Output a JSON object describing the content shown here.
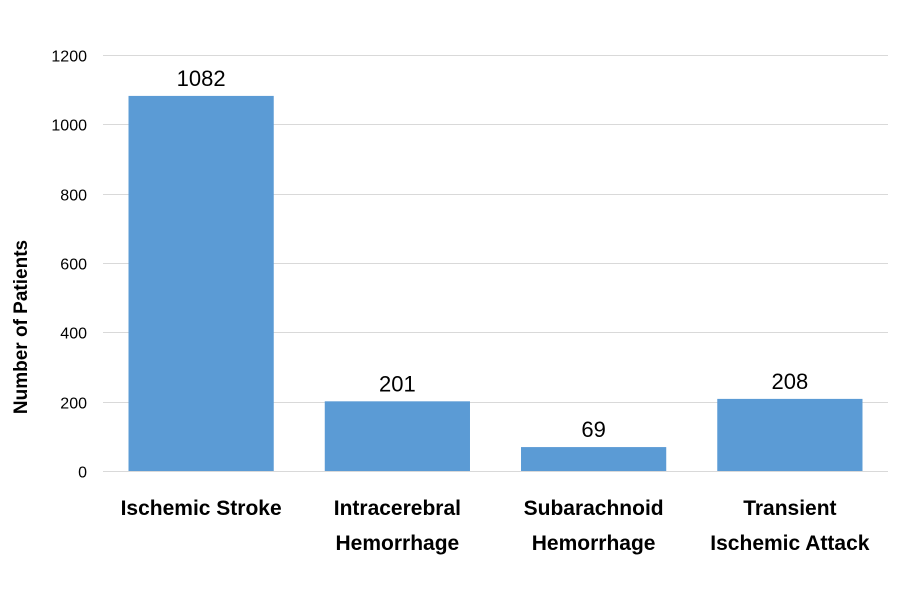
{
  "chart_data": {
    "type": "bar",
    "title": "",
    "xlabel": "",
    "ylabel": "Number of Patients",
    "categories": [
      [
        "Ischemic Stroke"
      ],
      [
        "Intracerebral",
        "Hemorrhage"
      ],
      [
        "Subarachnoid",
        "Hemorrhage"
      ],
      [
        "Transient",
        "Ischemic Attack"
      ]
    ],
    "values": [
      1082,
      201,
      69,
      208
    ],
    "data_labels": [
      "1082",
      "201",
      "69",
      "208"
    ],
    "ylim": [
      0,
      1200
    ],
    "yticks": [
      0,
      200,
      400,
      600,
      800,
      1000,
      1200
    ],
    "grid": true,
    "legend": "none",
    "colors": {
      "bar": "#5B9BD5",
      "grid": "#D9D9D9",
      "axis": "#D9D9D9"
    }
  }
}
